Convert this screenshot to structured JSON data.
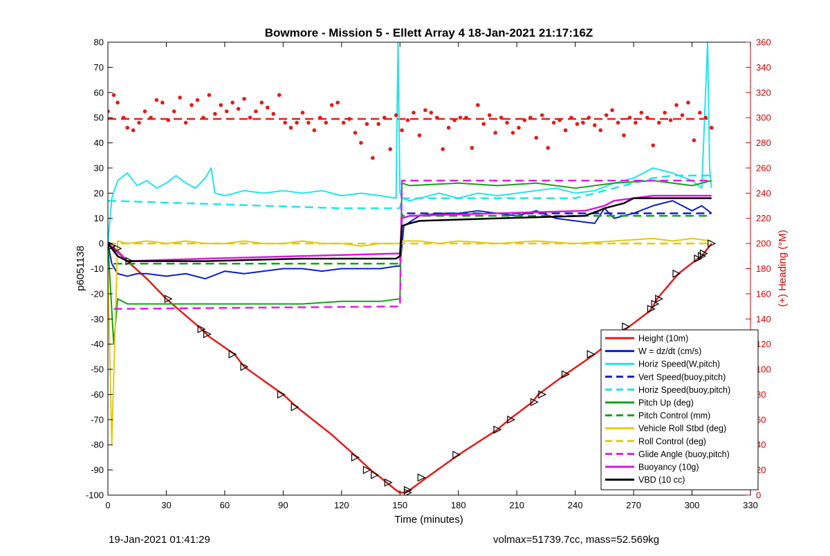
{
  "chart_data": {
    "type": "line",
    "title": "Bowmore - Mission 5 - Ellett Array 4 18-Jan-2021 21:17:16Z",
    "xlabel": "Time (minutes)",
    "ylabel": "p6051138",
    "ylabel_right": "(+) Heading (°M)",
    "xlim": [
      0,
      330
    ],
    "ylim": [
      -100,
      80
    ],
    "ylim_right": [
      0,
      360
    ],
    "xticks": [
      0,
      30,
      60,
      90,
      120,
      150,
      180,
      210,
      240,
      270,
      300,
      330
    ],
    "yticks": [
      -100,
      -90,
      -80,
      -70,
      -60,
      -50,
      -40,
      -30,
      -20,
      -10,
      0,
      10,
      20,
      30,
      40,
      50,
      60,
      70,
      80
    ],
    "yticks_right": [
      0,
      20,
      40,
      60,
      80,
      100,
      120,
      140,
      160,
      180,
      200,
      220,
      240,
      260,
      280,
      300,
      320,
      340,
      360
    ],
    "grid": false,
    "legend_position": "bottom-right",
    "colors": {
      "axes": "#000000",
      "heading_axis": "#d00000"
    },
    "series": [
      {
        "name": "Height (10m)",
        "color": "#e41b17",
        "style": "solid",
        "width": 2.5,
        "axis": "left",
        "x": [
          0,
          5,
          10,
          20,
          30,
          48,
          52,
          65,
          70,
          90,
          97,
          115,
          128,
          135,
          140,
          148,
          150,
          152,
          155,
          162,
          180,
          200,
          206,
          218,
          221,
          235,
          250,
          258,
          266,
          278,
          280,
          282,
          293,
          303,
          305,
          310
        ],
        "y": [
          0,
          -3,
          -7,
          -14,
          -22,
          -34,
          -37,
          -44,
          -49,
          -60,
          -65,
          -76,
          -85,
          -90,
          -93,
          -98,
          -99,
          -99,
          -98,
          -94,
          -84,
          -74,
          -70,
          -63,
          -60,
          -52,
          -44,
          -39,
          -34,
          -27,
          -25,
          -22,
          -12,
          -6,
          -5,
          0
        ]
      },
      {
        "name": "W = dz/dt (cm/s)",
        "color": "#0a1fbf",
        "style": "solid",
        "width": 2,
        "axis": "left",
        "x": [
          0,
          2,
          5,
          10,
          15,
          20,
          30,
          40,
          50,
          60,
          70,
          80,
          90,
          100,
          110,
          120,
          130,
          140,
          148,
          150,
          152,
          160,
          170,
          180,
          190,
          200,
          210,
          220,
          230,
          240,
          250,
          255,
          260,
          270,
          280,
          290,
          300,
          305,
          310
        ],
        "y": [
          0,
          -8,
          -12,
          -13,
          -12,
          -12,
          -13,
          -12,
          -14,
          -11,
          -12,
          -11,
          -10,
          -10,
          -11,
          -10,
          -10,
          -10,
          -9,
          -9,
          7,
          11,
          12,
          12,
          13,
          12,
          11,
          13,
          10,
          9,
          8,
          14,
          10,
          12,
          15,
          17,
          13,
          15,
          12
        ]
      },
      {
        "name": "Horiz Speed(W,pitch)",
        "color": "#1ee5ec",
        "style": "solid",
        "width": 2,
        "axis": "left",
        "x": [
          0,
          2,
          5,
          10,
          15,
          20,
          25,
          30,
          35,
          40,
          45,
          50,
          53,
          55,
          60,
          70,
          80,
          90,
          100,
          110,
          120,
          130,
          140,
          148,
          149,
          150,
          151,
          155,
          160,
          170,
          180,
          190,
          200,
          210,
          220,
          230,
          240,
          250,
          260,
          270,
          280,
          290,
          300,
          305,
          308,
          309,
          310
        ],
        "y": [
          0,
          18,
          25,
          28,
          23,
          25,
          22,
          24,
          27,
          24,
          22,
          26,
          30,
          20,
          19,
          21,
          20,
          21,
          20,
          21,
          19,
          20,
          19,
          18,
          80,
          20,
          18,
          17,
          18,
          20,
          18,
          20,
          19,
          20,
          21,
          22,
          20,
          21,
          24,
          26,
          30,
          28,
          25,
          22,
          80,
          30,
          22
        ]
      },
      {
        "name": "Vert Speed(buoy,pitch)",
        "color": "#0a1fbf",
        "style": "dashed",
        "width": 2.5,
        "axis": "left",
        "x": [
          3,
          150,
          151,
          310
        ],
        "y": [
          -8,
          -8,
          12,
          12
        ]
      },
      {
        "name": "Horiz Speed(buoy,pitch)",
        "color": "#1ee5ec",
        "style": "dashed",
        "width": 2.5,
        "axis": "left",
        "x": [
          0,
          40,
          80,
          120,
          150,
          151,
          200,
          240,
          250,
          260,
          270,
          280,
          290,
          310
        ],
        "y": [
          17,
          16,
          15,
          14,
          14,
          18,
          18,
          18,
          20,
          22,
          24,
          26,
          27,
          27
        ]
      },
      {
        "name": "Pitch Up (deg)",
        "color": "#13a11a",
        "style": "solid",
        "width": 2,
        "axis": "left",
        "x": [
          0,
          3,
          5,
          10,
          20,
          40,
          60,
          80,
          100,
          120,
          140,
          150,
          151,
          155,
          180,
          200,
          220,
          240,
          260,
          280,
          300,
          310
        ],
        "y": [
          0,
          -40,
          -22,
          -24,
          -24,
          -24,
          -24,
          -24,
          -24,
          -23,
          -23,
          -22,
          24,
          23,
          24,
          23,
          24,
          22,
          24,
          25,
          23,
          25
        ]
      },
      {
        "name": "Pitch Control (mm)",
        "color": "#13a11a",
        "style": "dashed",
        "width": 2.5,
        "axis": "left",
        "x": [
          3,
          150,
          151,
          310
        ],
        "y": [
          -8,
          -8,
          11,
          11
        ]
      },
      {
        "name": "Vehicle Roll Stbd (deg)",
        "color": "#e3c90e",
        "style": "solid",
        "width": 2,
        "axis": "left",
        "x": [
          0,
          2,
          5,
          10,
          20,
          30,
          40,
          50,
          60,
          70,
          80,
          90,
          100,
          110,
          120,
          130,
          140,
          148,
          150,
          151,
          160,
          170,
          180,
          200,
          220,
          240,
          260,
          280,
          290,
          300,
          310
        ],
        "y": [
          -10,
          -80,
          1,
          0,
          1,
          0,
          1,
          0,
          0,
          1,
          0,
          0,
          1,
          0,
          0,
          -1,
          0,
          0,
          0,
          1,
          1,
          0,
          1,
          0,
          1,
          0,
          1,
          2,
          1,
          2,
          1
        ]
      },
      {
        "name": "Roll Control (deg)",
        "color": "#e3c90e",
        "style": "dashed",
        "width": 2.5,
        "axis": "left",
        "x": [
          0,
          150,
          151,
          310
        ],
        "y": [
          0,
          0,
          0,
          0
        ]
      },
      {
        "name": "Glide Angle (buoy,pitch)",
        "color": "#e21ee6",
        "style": "dashed",
        "width": 2.5,
        "axis": "left",
        "x": [
          3,
          150,
          151,
          310
        ],
        "y": [
          -26,
          -25,
          25,
          25
        ]
      },
      {
        "name": "Buoyancy (10g)",
        "color": "#d51ad6",
        "style": "solid",
        "width": 2.5,
        "axis": "left",
        "x": [
          0,
          10,
          50,
          100,
          148,
          150,
          151,
          155,
          200,
          245,
          255,
          260,
          270,
          280,
          300,
          310
        ],
        "y": [
          0,
          -7,
          -6,
          -5,
          -4,
          -4,
          10,
          11,
          12,
          13,
          15,
          17,
          18,
          19,
          19,
          19
        ]
      },
      {
        "name": "VBD (10 cc)",
        "color": "#000000",
        "style": "solid",
        "width": 2.5,
        "axis": "left",
        "x": [
          0,
          5,
          10,
          50,
          100,
          148,
          150,
          151,
          155,
          160,
          200,
          245,
          252,
          255,
          260,
          265,
          270,
          280,
          300,
          310
        ],
        "y": [
          0,
          -5,
          -7,
          -7,
          -6,
          -6,
          -5,
          7,
          8,
          9,
          10,
          11,
          13,
          14,
          15,
          16,
          18,
          18,
          18,
          18
        ]
      }
    ],
    "heading": {
      "mean_line": {
        "x": [
          0,
          310
        ],
        "y": [
          299,
          299
        ],
        "color": "#e41b17",
        "style": "dashed"
      },
      "points": {
        "color": "#e41b17",
        "x": [
          0,
          3,
          5,
          8,
          10,
          13,
          16,
          19,
          22,
          25,
          28,
          31,
          34,
          37,
          40,
          43,
          46,
          49,
          52,
          55,
          58,
          61,
          64,
          67,
          70,
          73,
          76,
          79,
          82,
          85,
          88,
          91,
          94,
          97,
          100,
          103,
          106,
          109,
          112,
          115,
          118,
          121,
          124,
          127,
          130,
          133,
          136,
          139,
          142,
          145,
          148,
          151,
          154,
          157,
          160,
          163,
          166,
          169,
          172,
          175,
          178,
          181,
          184,
          187,
          190,
          193,
          196,
          199,
          202,
          205,
          208,
          211,
          214,
          217,
          220,
          223,
          226,
          229,
          232,
          235,
          238,
          241,
          244,
          247,
          250,
          253,
          256,
          259,
          262,
          265,
          268,
          271,
          274,
          277,
          280,
          283,
          286,
          289,
          292,
          295,
          298,
          301,
          304,
          307,
          310
        ],
        "y": [
          305,
          318,
          312,
          300,
          292,
          290,
          296,
          305,
          300,
          314,
          312,
          298,
          305,
          316,
          296,
          310,
          314,
          300,
          318,
          303,
          310,
          305,
          312,
          307,
          315,
          300,
          305,
          312,
          308,
          303,
          318,
          296,
          292,
          296,
          304,
          296,
          290,
          300,
          296,
          310,
          312,
          296,
          299,
          288,
          280,
          295,
          268,
          295,
          300,
          275,
          302,
          290,
          298,
          304,
          286,
          306,
          304,
          300,
          275,
          292,
          298,
          300,
          300,
          276,
          310,
          295,
          302,
          288,
          300,
          296,
          288,
          292,
          298,
          300,
          284,
          302,
          276,
          296,
          298,
          290,
          300,
          295,
          296,
          300,
          294,
          290,
          302,
          306,
          296,
          286,
          300,
          296,
          304,
          300,
          278,
          296,
          304,
          298,
          310,
          302,
          312,
          282,
          304,
          300,
          292
        ]
      }
    },
    "markers": {
      "type": "triangle",
      "x": [
        0,
        2,
        5,
        11,
        31,
        48,
        51,
        64,
        70,
        89,
        96,
        127,
        133,
        137,
        144,
        154,
        154,
        161,
        179,
        200,
        207,
        219,
        223,
        235,
        248,
        259,
        266,
        279,
        281,
        283,
        292,
        303,
        305,
        306,
        310
      ],
      "y": [
        0,
        -1,
        -2,
        -7,
        -22,
        -34,
        -36,
        -44,
        -49,
        -60,
        -65,
        -85,
        -90,
        -92,
        -95,
        -99,
        -98,
        -93,
        -84,
        -74,
        -70,
        -63,
        -60,
        -52,
        -44,
        -39,
        -33,
        -26,
        -24,
        -22,
        -12,
        -6,
        -5,
        -4,
        0
      ]
    }
  },
  "footer": {
    "timestamp": "19-Jan-2021 01:41:29",
    "stats": "volmax=51739.7cc, mass=52.569kg"
  }
}
